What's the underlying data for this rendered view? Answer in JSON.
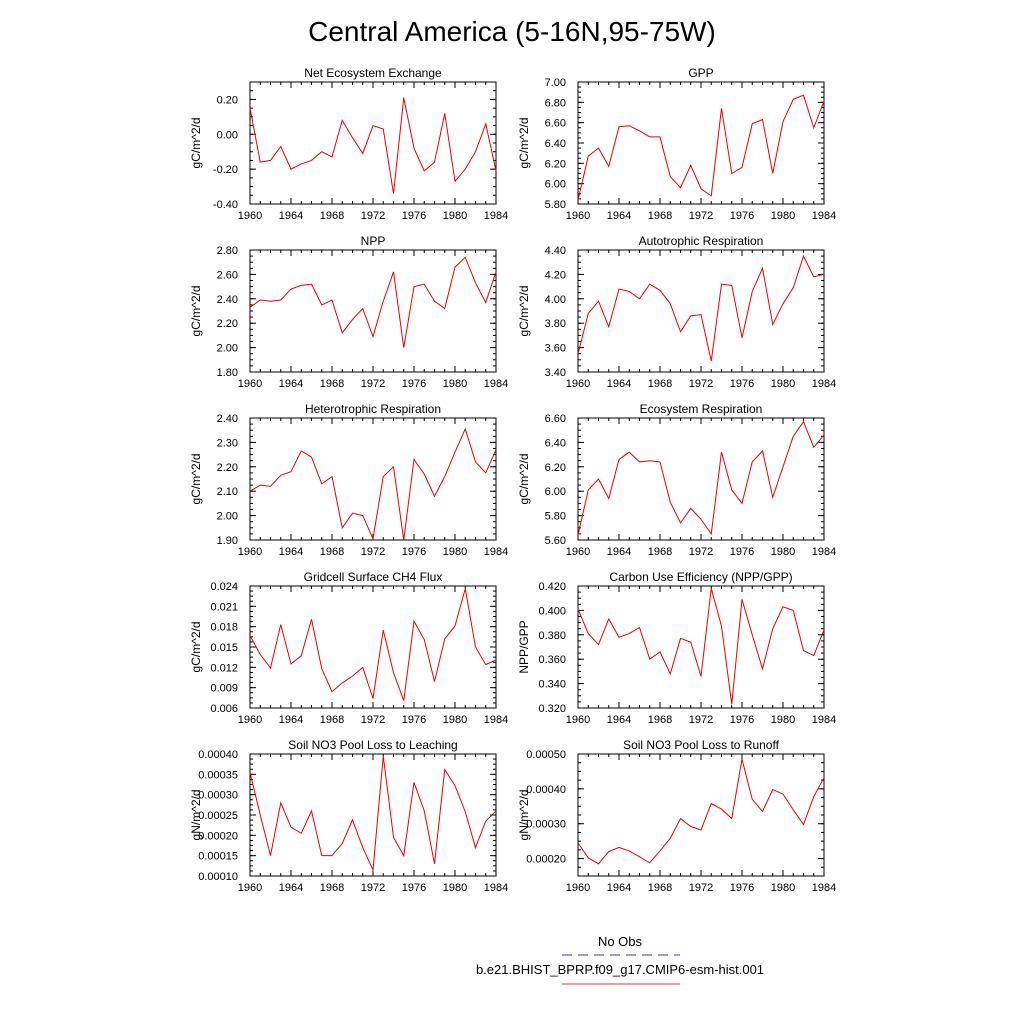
{
  "figure": {
    "title": "Central America (5-16N,95-75W)"
  },
  "legend": {
    "placement": "bottom-center",
    "entries": [
      {
        "label": "No Obs",
        "color": "#3333cc",
        "dash": true
      },
      {
        "label": "b.e21.BHIST_BPRP.f09_g17.CMIP6-esm-hist.001",
        "color": "#ee3333",
        "dash": false
      }
    ]
  },
  "colors": {
    "series": "#ee0000",
    "axes": "#000000"
  },
  "chart_data": [
    {
      "type": "line",
      "title": "Net Ecosystem Exchange",
      "ylabel": "gC/m^2/d",
      "xlim": [
        1960,
        1984
      ],
      "xticks": [
        1960,
        1964,
        1968,
        1972,
        1976,
        1980,
        1984
      ],
      "ylim": [
        -0.4,
        0.3
      ],
      "yticks": [
        "-0.40",
        "-0.20",
        "0.00",
        "0.20"
      ],
      "ytick_values": [
        -0.4,
        -0.2,
        0.0,
        0.2
      ],
      "x": [
        1960,
        1961,
        1962,
        1963,
        1964,
        1965,
        1966,
        1967,
        1968,
        1969,
        1970,
        1971,
        1972,
        1973,
        1974,
        1975,
        1976,
        1977,
        1978,
        1979,
        1980,
        1981,
        1982,
        1983,
        1984
      ],
      "series": [
        {
          "values": [
            0.15,
            -0.16,
            -0.15,
            -0.07,
            -0.2,
            -0.17,
            -0.15,
            -0.1,
            -0.13,
            0.08,
            -0.02,
            -0.11,
            0.05,
            0.03,
            -0.34,
            0.21,
            -0.08,
            -0.21,
            -0.16,
            0.12,
            -0.27,
            -0.2,
            -0.1,
            0.06,
            -0.21
          ]
        }
      ]
    },
    {
      "type": "line",
      "title": "GPP",
      "ylabel": "gC/m^2/d",
      "xlim": [
        1960,
        1984
      ],
      "xticks": [
        1960,
        1964,
        1968,
        1972,
        1976,
        1980,
        1984
      ],
      "ylim": [
        5.8,
        7.0
      ],
      "yticks": [
        "5.80",
        "6.00",
        "6.20",
        "6.40",
        "6.60",
        "6.80",
        "7.00"
      ],
      "ytick_values": [
        5.8,
        6.0,
        6.2,
        6.4,
        6.6,
        6.8,
        7.0
      ],
      "x": [
        1960,
        1961,
        1962,
        1963,
        1964,
        1965,
        1966,
        1967,
        1968,
        1969,
        1970,
        1971,
        1972,
        1973,
        1974,
        1975,
        1976,
        1977,
        1978,
        1979,
        1980,
        1981,
        1982,
        1983,
        1984
      ],
      "series": [
        {
          "values": [
            5.84,
            6.27,
            6.35,
            6.17,
            6.56,
            6.57,
            6.52,
            6.46,
            6.46,
            6.07,
            5.96,
            6.18,
            5.95,
            5.88,
            6.74,
            6.1,
            6.16,
            6.59,
            6.63,
            6.1,
            6.61,
            6.83,
            6.87,
            6.55,
            6.81
          ]
        }
      ]
    },
    {
      "type": "line",
      "title": "NPP",
      "ylabel": "gC/m^2/d",
      "xlim": [
        1960,
        1984
      ],
      "xticks": [
        1960,
        1964,
        1968,
        1972,
        1976,
        1980,
        1984
      ],
      "ylim": [
        1.8,
        2.8
      ],
      "yticks": [
        "1.80",
        "2.00",
        "2.20",
        "2.40",
        "2.60",
        "2.80"
      ],
      "ytick_values": [
        1.8,
        2.0,
        2.2,
        2.4,
        2.6,
        2.8
      ],
      "x": [
        1960,
        1961,
        1962,
        1963,
        1964,
        1965,
        1966,
        1967,
        1968,
        1969,
        1970,
        1971,
        1972,
        1973,
        1974,
        1975,
        1976,
        1977,
        1978,
        1979,
        1980,
        1981,
        1982,
        1983,
        1984
      ],
      "series": [
        {
          "values": [
            2.33,
            2.39,
            2.38,
            2.39,
            2.48,
            2.51,
            2.52,
            2.35,
            2.39,
            2.12,
            2.23,
            2.32,
            2.09,
            2.38,
            2.62,
            2.0,
            2.5,
            2.52,
            2.38,
            2.32,
            2.66,
            2.74,
            2.53,
            2.37,
            2.62
          ]
        }
      ]
    },
    {
      "type": "line",
      "title": "Autotrophic Respiration",
      "ylabel": "gC/m^2/d",
      "xlim": [
        1960,
        1984
      ],
      "xticks": [
        1960,
        1964,
        1968,
        1972,
        1976,
        1980,
        1984
      ],
      "ylim": [
        3.4,
        4.4
      ],
      "yticks": [
        "3.40",
        "3.60",
        "3.80",
        "4.00",
        "4.20",
        "4.40"
      ],
      "ytick_values": [
        3.4,
        3.6,
        3.8,
        4.0,
        4.2,
        4.4
      ],
      "x": [
        1960,
        1961,
        1962,
        1963,
        1964,
        1965,
        1966,
        1967,
        1968,
        1969,
        1970,
        1971,
        1972,
        1973,
        1974,
        1975,
        1976,
        1977,
        1978,
        1979,
        1980,
        1981,
        1982,
        1983,
        1984
      ],
      "series": [
        {
          "values": [
            3.55,
            3.88,
            3.98,
            3.77,
            4.08,
            4.06,
            4.0,
            4.12,
            4.07,
            3.96,
            3.73,
            3.86,
            3.87,
            3.49,
            4.12,
            4.11,
            3.68,
            4.06,
            4.25,
            3.79,
            3.96,
            4.09,
            4.35,
            4.18,
            4.2
          ]
        }
      ]
    },
    {
      "type": "line",
      "title": "Heterotrophic Respiration",
      "ylabel": "gC/m^2/d",
      "xlim": [
        1960,
        1984
      ],
      "xticks": [
        1960,
        1964,
        1968,
        1972,
        1976,
        1980,
        1984
      ],
      "ylim": [
        1.9,
        2.4
      ],
      "yticks": [
        "1.90",
        "2.00",
        "2.10",
        "2.20",
        "2.30",
        "2.40"
      ],
      "ytick_values": [
        1.9,
        2.0,
        2.1,
        2.2,
        2.3,
        2.4
      ],
      "x": [
        1960,
        1961,
        1962,
        1963,
        1964,
        1965,
        1966,
        1967,
        1968,
        1969,
        1970,
        1971,
        1972,
        1973,
        1974,
        1975,
        1976,
        1977,
        1978,
        1979,
        1980,
        1981,
        1982,
        1983,
        1984
      ],
      "series": [
        {
          "values": [
            2.1,
            2.125,
            2.12,
            2.165,
            2.18,
            2.265,
            2.24,
            2.13,
            2.16,
            1.95,
            2.01,
            2.0,
            1.905,
            2.16,
            2.2,
            1.9,
            2.23,
            2.17,
            2.08,
            2.16,
            2.26,
            2.355,
            2.22,
            2.175,
            2.27
          ]
        }
      ]
    },
    {
      "type": "line",
      "title": "Ecosystem Respiration",
      "ylabel": "gC/m^2/d",
      "xlim": [
        1960,
        1984
      ],
      "xticks": [
        1960,
        1964,
        1968,
        1972,
        1976,
        1980,
        1984
      ],
      "ylim": [
        5.6,
        6.6
      ],
      "yticks": [
        "5.60",
        "5.80",
        "6.00",
        "6.20",
        "6.40",
        "6.60"
      ],
      "ytick_values": [
        5.6,
        5.8,
        6.0,
        6.2,
        6.4,
        6.6
      ],
      "x": [
        1960,
        1961,
        1962,
        1963,
        1964,
        1965,
        1966,
        1967,
        1968,
        1969,
        1970,
        1971,
        1972,
        1973,
        1974,
        1975,
        1976,
        1977,
        1978,
        1979,
        1980,
        1981,
        1982,
        1983,
        1984
      ],
      "series": [
        {
          "values": [
            5.64,
            6.01,
            6.1,
            5.94,
            6.26,
            6.32,
            6.24,
            6.25,
            6.24,
            5.91,
            5.74,
            5.86,
            5.77,
            5.65,
            6.32,
            6.01,
            5.9,
            6.24,
            6.33,
            5.95,
            6.2,
            6.45,
            6.57,
            6.36,
            6.46
          ]
        }
      ]
    },
    {
      "type": "line",
      "title": "Gridcell Surface CH4 Flux",
      "ylabel": "gC/m^2/d",
      "xlim": [
        1960,
        1984
      ],
      "xticks": [
        1960,
        1964,
        1968,
        1972,
        1976,
        1980,
        1984
      ],
      "ylim": [
        0.006,
        0.024
      ],
      "yticks": [
        "0.006",
        "0.009",
        "0.012",
        "0.015",
        "0.018",
        "0.021",
        "0.024"
      ],
      "ytick_values": [
        0.006,
        0.009,
        0.012,
        0.015,
        0.018,
        0.021,
        0.024
      ],
      "x": [
        1960,
        1961,
        1962,
        1963,
        1964,
        1965,
        1966,
        1967,
        1968,
        1969,
        1970,
        1971,
        1972,
        1973,
        1974,
        1975,
        1976,
        1977,
        1978,
        1979,
        1980,
        1981,
        1982,
        1983,
        1984
      ],
      "series": [
        {
          "values": [
            0.0167,
            0.0139,
            0.0119,
            0.0183,
            0.0125,
            0.0137,
            0.0191,
            0.0118,
            0.0084,
            0.0097,
            0.0107,
            0.012,
            0.0074,
            0.0175,
            0.0112,
            0.0071,
            0.0188,
            0.0161,
            0.0099,
            0.0162,
            0.0181,
            0.0236,
            0.015,
            0.0124,
            0.0131
          ]
        }
      ]
    },
    {
      "type": "line",
      "title": "Carbon Use Efficiency (NPP/GPP)",
      "ylabel": "NPP/GPP",
      "xlim": [
        1960,
        1984
      ],
      "xticks": [
        1960,
        1964,
        1968,
        1972,
        1976,
        1980,
        1984
      ],
      "ylim": [
        0.32,
        0.42
      ],
      "yticks": [
        "0.320",
        "0.340",
        "0.360",
        "0.380",
        "0.400",
        "0.420"
      ],
      "ytick_values": [
        0.32,
        0.34,
        0.36,
        0.38,
        0.4,
        0.42
      ],
      "x": [
        1960,
        1961,
        1962,
        1963,
        1964,
        1965,
        1966,
        1967,
        1968,
        1969,
        1970,
        1971,
        1972,
        1973,
        1974,
        1975,
        1976,
        1977,
        1978,
        1979,
        1980,
        1981,
        1982,
        1983,
        1984
      ],
      "series": [
        {
          "values": [
            0.401,
            0.381,
            0.372,
            0.393,
            0.378,
            0.381,
            0.386,
            0.36,
            0.366,
            0.348,
            0.377,
            0.374,
            0.346,
            0.418,
            0.387,
            0.323,
            0.409,
            0.38,
            0.352,
            0.385,
            0.403,
            0.4,
            0.367,
            0.363,
            0.384
          ]
        }
      ]
    },
    {
      "type": "line",
      "title": "Soil NO3 Pool Loss to Leaching",
      "ylabel": "gN/m^2/d",
      "xlim": [
        1960,
        1984
      ],
      "xticks": [
        1960,
        1964,
        1968,
        1972,
        1976,
        1980,
        1984
      ],
      "ylim": [
        0.0001,
        0.0004
      ],
      "yticks": [
        "0.00010",
        "0.00015",
        "0.00020",
        "0.00025",
        "0.00030",
        "0.00035",
        "0.00040"
      ],
      "ytick_values": [
        0.0001,
        0.00015,
        0.0002,
        0.00025,
        0.0003,
        0.00035,
        0.0004
      ],
      "x": [
        1960,
        1961,
        1962,
        1963,
        1964,
        1965,
        1966,
        1967,
        1968,
        1969,
        1970,
        1971,
        1972,
        1973,
        1974,
        1975,
        1976,
        1977,
        1978,
        1979,
        1980,
        1981,
        1982,
        1983,
        1984
      ],
      "series": [
        {
          "values": [
            0.000355,
            0.00025,
            0.00015,
            0.00028,
            0.00022,
            0.000205,
            0.00026,
            0.00015,
            0.00015,
            0.00018,
            0.000238,
            0.00017,
            0.000115,
            0.000395,
            0.000195,
            0.00015,
            0.00033,
            0.00026,
            0.00013,
            0.000362,
            0.000322,
            0.000258,
            0.00017,
            0.000235,
            0.00026
          ]
        }
      ]
    },
    {
      "type": "line",
      "title": "Soil NO3 Pool Loss to Runoff",
      "ylabel": "gN/m^2/d",
      "xlim": [
        1960,
        1984
      ],
      "xticks": [
        1960,
        1964,
        1968,
        1972,
        1976,
        1980,
        1984
      ],
      "ylim": [
        0.00015,
        0.0005
      ],
      "yticks": [
        "0.00020",
        "0.00030",
        "0.00040",
        "0.00050"
      ],
      "ytick_values": [
        0.0002,
        0.0003,
        0.0004,
        0.0005
      ],
      "x": [
        1960,
        1961,
        1962,
        1963,
        1964,
        1965,
        1966,
        1967,
        1968,
        1969,
        1970,
        1971,
        1972,
        1973,
        1974,
        1975,
        1976,
        1977,
        1978,
        1979,
        1980,
        1981,
        1982,
        1983,
        1984
      ],
      "series": [
        {
          "values": [
            0.000245,
            0.000202,
            0.000185,
            0.00022,
            0.000232,
            0.000222,
            0.000205,
            0.000188,
            0.000222,
            0.000258,
            0.000315,
            0.000292,
            0.000282,
            0.000358,
            0.000342,
            0.000315,
            0.000485,
            0.00037,
            0.000335,
            0.000398,
            0.000385,
            0.00034,
            0.000298,
            0.000378,
            0.000432
          ]
        }
      ]
    }
  ]
}
